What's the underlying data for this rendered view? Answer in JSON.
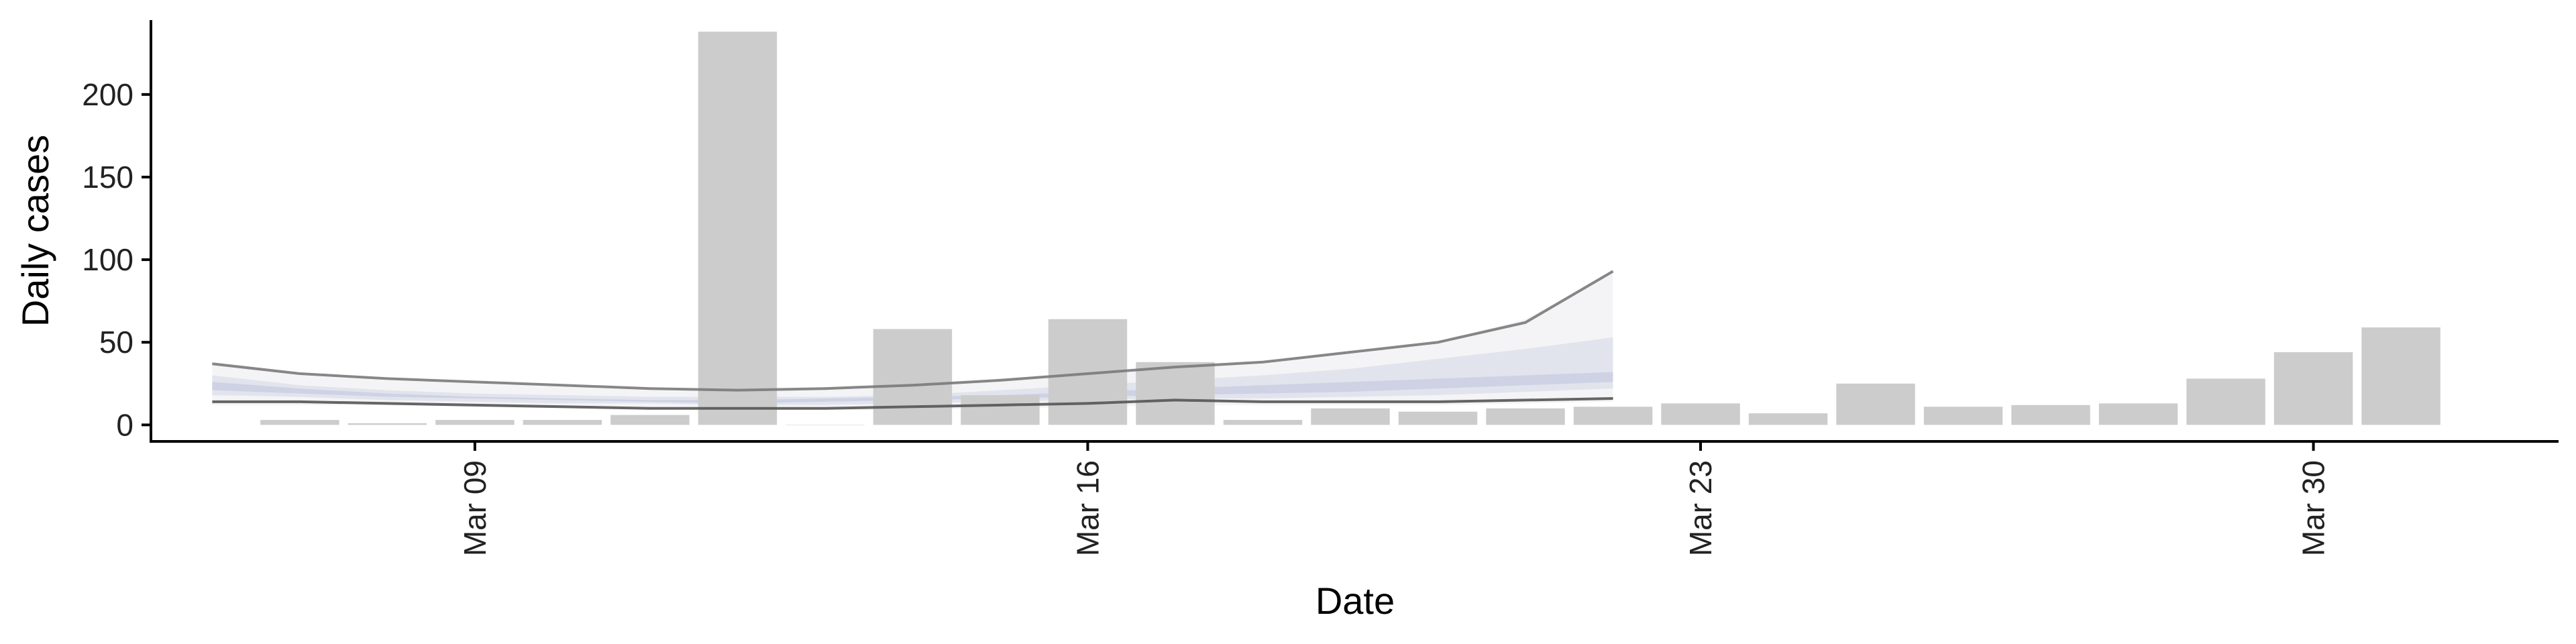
{
  "chart_data": {
    "type": "bar",
    "xlabel": "Date",
    "ylabel": "Daily cases",
    "ylim": [
      -10,
      245
    ],
    "yticks": [
      0,
      50,
      100,
      150,
      200
    ],
    "xticks": [
      {
        "date": "Mar 09",
        "value": 9
      },
      {
        "date": "Mar 16",
        "value": 16
      },
      {
        "date": "Mar 23",
        "value": 23
      },
      {
        "date": "Mar 30",
        "value": 30
      }
    ],
    "xlim": [
      5.3,
      32.8
    ],
    "bars": {
      "days": [
        7,
        8,
        9,
        10,
        11,
        12,
        13,
        14,
        15,
        16,
        17,
        18,
        19,
        20,
        21,
        22,
        23,
        24,
        25,
        26,
        27,
        28,
        29,
        30,
        31
      ],
      "values": [
        3,
        1,
        3,
        3,
        6,
        238,
        0,
        58,
        18,
        64,
        38,
        3,
        10,
        8,
        10,
        11,
        13,
        7,
        25,
        11,
        12,
        13,
        28,
        44,
        59
      ]
    },
    "bands": [
      {
        "name": "",
        "days": [
          6,
          7,
          8,
          9,
          10,
          11,
          12,
          13,
          14,
          15,
          16,
          17,
          18,
          19,
          20,
          21,
          22
        ],
        "lower": [
          12,
          12,
          12,
          11,
          10,
          10,
          9,
          9,
          9,
          10,
          11,
          12,
          12,
          12,
          12,
          13,
          14
        ],
        "upper": [
          37,
          30,
          27,
          25,
          23,
          21,
          20,
          22,
          24,
          28,
          31,
          35,
          38,
          44,
          50,
          64,
          93
        ]
      },
      {
        "name": "",
        "days": [
          6,
          7,
          8,
          9,
          10,
          11,
          12,
          13,
          14,
          15,
          16,
          17,
          18,
          19,
          20,
          21,
          22
        ],
        "lower": [
          18,
          17,
          15,
          14,
          13,
          13,
          12,
          12,
          13,
          14,
          15,
          16,
          16,
          17,
          18,
          20,
          22
        ],
        "upper": [
          30,
          24,
          21,
          19,
          18,
          17,
          17,
          17,
          18,
          21,
          24,
          27,
          30,
          34,
          40,
          46,
          53
        ]
      },
      {
        "name": "",
        "days": [
          6,
          7,
          8,
          9,
          10,
          11,
          12,
          13,
          14,
          15,
          16,
          17,
          18,
          19,
          20,
          21,
          22
        ],
        "lower": [
          21,
          19,
          17,
          16,
          15,
          14,
          13,
          14,
          15,
          16,
          17,
          18,
          19,
          20,
          22,
          24,
          26
        ],
        "upper": [
          26,
          22,
          19,
          17,
          16,
          15,
          15,
          16,
          17,
          18,
          20,
          22,
          24,
          26,
          28,
          30,
          32
        ]
      }
    ],
    "lines": [
      {
        "name": "",
        "days": [
          6,
          7,
          8,
          9,
          10,
          11,
          12,
          13,
          14,
          15,
          16,
          17,
          18,
          19,
          20,
          21,
          22
        ],
        "values": [
          37,
          31,
          28,
          26,
          24,
          22,
          21,
          22,
          24,
          27,
          31,
          35,
          38,
          44,
          50,
          62,
          93
        ]
      },
      {
        "name": "",
        "days": [
          6,
          7,
          8,
          9,
          10,
          11,
          12,
          13,
          14,
          15,
          16,
          17,
          18,
          19,
          20,
          21,
          22
        ],
        "values": [
          14,
          14,
          13,
          12,
          11,
          10,
          10,
          10,
          11,
          12,
          13,
          15,
          14,
          14,
          14,
          15,
          16
        ]
      }
    ],
    "colors": {
      "bars": "#cccccc",
      "band_outer": "#f2f2f4",
      "band_mid": "#dcdfea",
      "band_inner": "#c7cce0",
      "line_upper": "#7a7a7a",
      "line_lower": "#555555",
      "axis": "#000000"
    },
    "grid": false,
    "legend": "none"
  }
}
